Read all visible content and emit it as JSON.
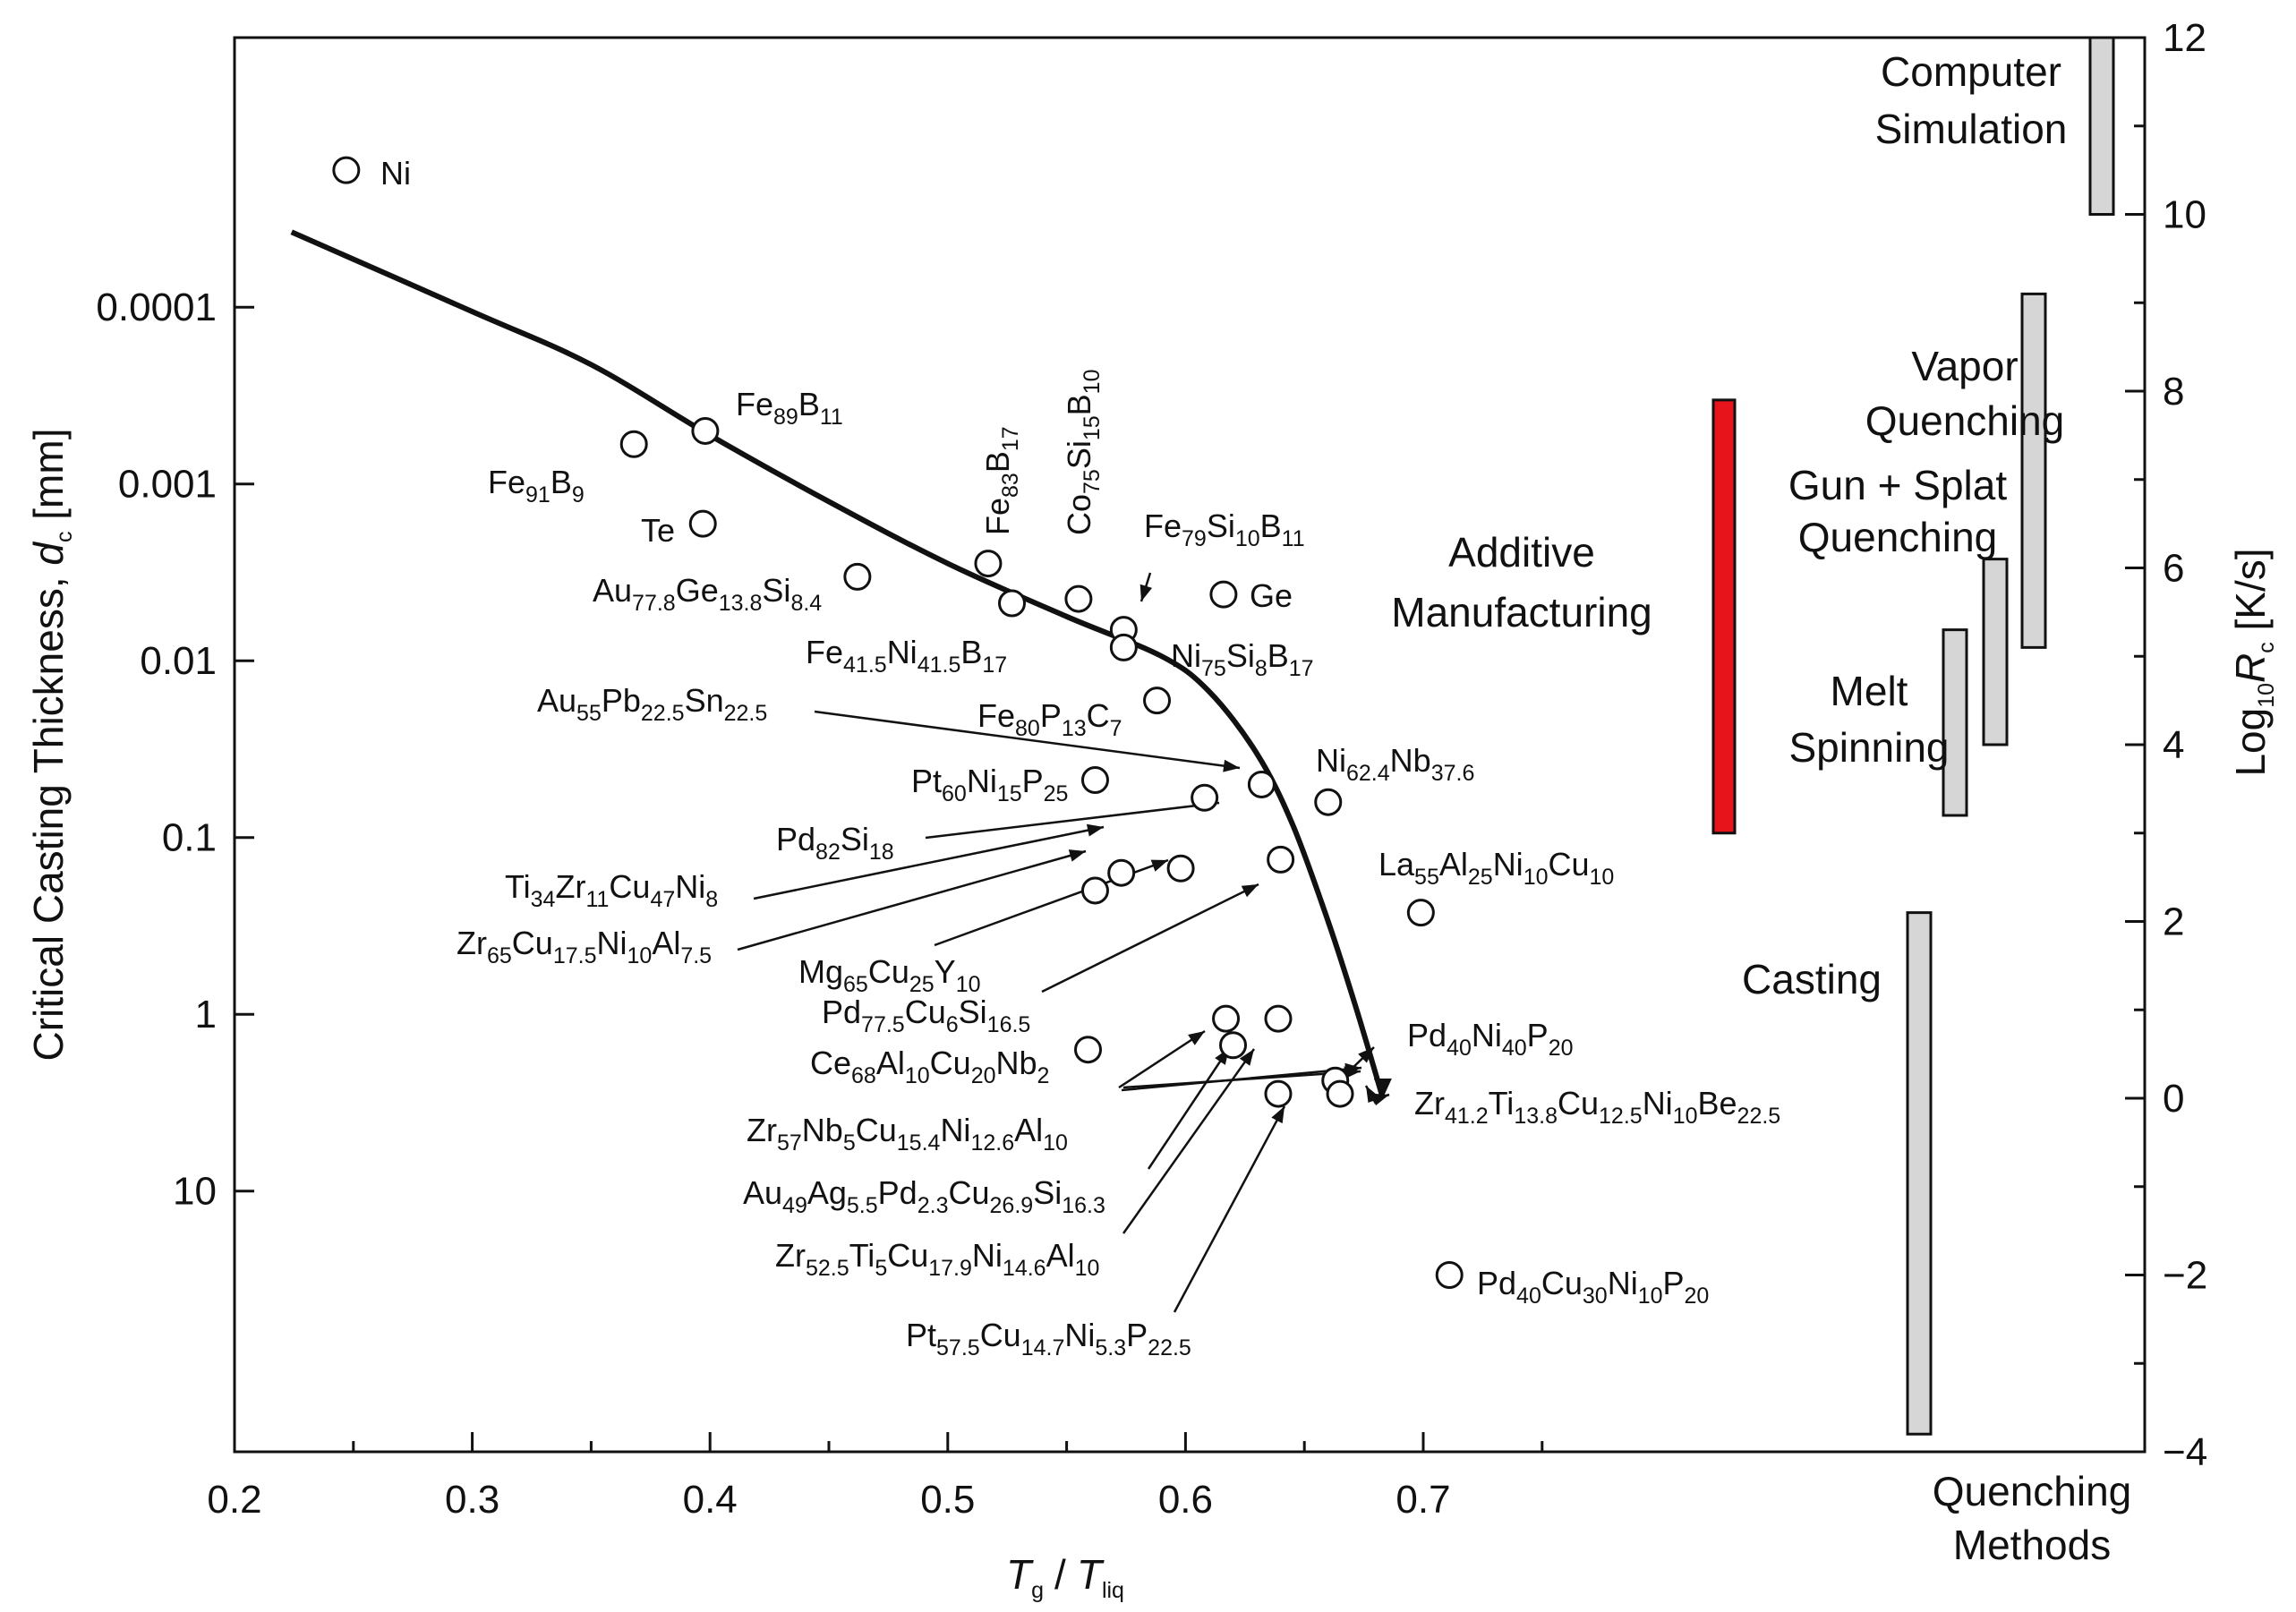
{
  "chart_data": {
    "type": "scatter",
    "xlabel": {
      "main": "T",
      "sub": "g",
      "slash": "/",
      "main2": "T",
      "sub2": "liq"
    },
    "ylabel": {
      "text": "Critical Casting Thickness, ",
      "var": "d",
      "sub": "c",
      "unit": " [mm]"
    },
    "y2label": {
      "prefix": "Log",
      "sub": "10",
      "var": "R",
      "sub2": "c",
      "unit": " [K/s]"
    },
    "xlim": [
      0.2,
      0.99
    ],
    "x_ticks": [
      "0.2",
      "0.3",
      "0.4",
      "0.5",
      "0.6",
      "0.7"
    ],
    "y_left_ticks": [
      "0.0001",
      "0.001",
      "0.01",
      "0.1",
      "1",
      "10"
    ],
    "y_right_ticks": [
      "12",
      "10",
      "8",
      "6",
      "4",
      "2",
      "0",
      "−2",
      "−4"
    ],
    "y_right_lim": [
      -4,
      12
    ],
    "points": [
      {
        "name": "Ni",
        "label": [
          {
            "t": "Ni"
          }
        ],
        "x": 0.247,
        "logR": 10.5
      },
      {
        "name": "Fe91B9",
        "label": [
          {
            "t": "Fe"
          },
          {
            "s": "91"
          },
          {
            "t": "B"
          },
          {
            "s": "9"
          }
        ],
        "x": 0.368,
        "logR": 7.4
      },
      {
        "name": "Fe89B11",
        "label": [
          {
            "t": "Fe"
          },
          {
            "s": "89"
          },
          {
            "t": "B"
          },
          {
            "s": "11"
          }
        ],
        "x": 0.398,
        "logR": 7.55
      },
      {
        "name": "Te",
        "label": [
          {
            "t": "Te"
          }
        ],
        "x": 0.397,
        "logR": 6.5
      },
      {
        "name": "Au77.8Ge13.8Si8.4",
        "label": [
          {
            "t": "Au"
          },
          {
            "s": "77.8"
          },
          {
            "t": "Ge"
          },
          {
            "s": "13.8"
          },
          {
            "t": "Si"
          },
          {
            "s": "8.4"
          }
        ],
        "x": 0.462,
        "logR": 5.9
      },
      {
        "name": "Fe83B17",
        "label": [
          {
            "t": "Fe"
          },
          {
            "s": "83"
          },
          {
            "t": "B"
          },
          {
            "s": "17"
          }
        ],
        "x": 0.517,
        "logR": 6.05
      },
      {
        "name": "Fe41.5Ni41.5B17",
        "label": [
          {
            "t": "Fe"
          },
          {
            "s": "41.5"
          },
          {
            "t": "Ni"
          },
          {
            "s": "41.5"
          },
          {
            "t": "B"
          },
          {
            "s": "17"
          }
        ],
        "x": 0.527,
        "logR": 5.6
      },
      {
        "name": "Co75Si15B10",
        "label": [
          {
            "t": "Co"
          },
          {
            "s": "75"
          },
          {
            "t": "Si"
          },
          {
            "s": "15"
          },
          {
            "t": "B"
          },
          {
            "s": "10"
          }
        ],
        "x": 0.555,
        "logR": 5.65
      },
      {
        "name": "Fe79Si10B11",
        "label": [
          {
            "t": "Fe"
          },
          {
            "s": "79"
          },
          {
            "t": "Si"
          },
          {
            "s": "10"
          },
          {
            "t": "B"
          },
          {
            "s": "11"
          }
        ],
        "x": 0.574,
        "logR": 5.3
      },
      {
        "name": "Ni75Si8B17",
        "label": [
          {
            "t": "Ni"
          },
          {
            "s": "75"
          },
          {
            "t": "Si"
          },
          {
            "s": "8"
          },
          {
            "t": "B"
          },
          {
            "s": "17"
          }
        ],
        "x": 0.574,
        "logR": 5.1
      },
      {
        "name": "Ge",
        "label": [
          {
            "t": "Ge"
          }
        ],
        "x": 0.616,
        "logR": 5.7
      },
      {
        "name": "Fe80P13C7",
        "label": [
          {
            "t": "Fe"
          },
          {
            "s": "80"
          },
          {
            "t": "P"
          },
          {
            "s": "13"
          },
          {
            "t": "C"
          },
          {
            "s": "7"
          }
        ],
        "x": 0.588,
        "logR": 4.5
      },
      {
        "name": "Au55Pb22.5Sn22.5",
        "label": [
          {
            "t": "Au"
          },
          {
            "s": "55"
          },
          {
            "t": "Pb"
          },
          {
            "s": "22.5"
          },
          {
            "t": "Sn"
          },
          {
            "s": "22.5"
          }
        ],
        "x": 0.632,
        "logR": 3.55
      },
      {
        "name": "Ni62.4Nb37.6",
        "label": [
          {
            "t": "Ni"
          },
          {
            "s": "62.4"
          },
          {
            "t": "Nb"
          },
          {
            "s": "37.6"
          }
        ],
        "x": 0.66,
        "logR": 3.35
      },
      {
        "name": "Pt60Ni15P25",
        "label": [
          {
            "t": "Pt"
          },
          {
            "s": "60"
          },
          {
            "t": "Ni"
          },
          {
            "s": "15"
          },
          {
            "t": "P"
          },
          {
            "s": "25"
          }
        ],
        "x": 0.562,
        "logR": 3.6
      },
      {
        "name": "Pd82Si18",
        "label": [
          {
            "t": "Pd"
          },
          {
            "s": "82"
          },
          {
            "t": "Si"
          },
          {
            "s": "18"
          }
        ],
        "x": 0.608,
        "logR": 3.4
      },
      {
        "name": "Ti34Zr11Cu47Ni8",
        "label": [
          {
            "t": "Ti"
          },
          {
            "s": "34"
          },
          {
            "t": "Zr"
          },
          {
            "s": "11"
          },
          {
            "t": "Cu"
          },
          {
            "s": "47"
          },
          {
            "t": "Ni"
          },
          {
            "s": "8"
          }
        ],
        "x": 0.573,
        "logR": 2.55
      },
      {
        "name": "Zr65Cu17.5Ni10Al7.5",
        "label": [
          {
            "t": "Zr"
          },
          {
            "s": "65"
          },
          {
            "t": "Cu"
          },
          {
            "s": "17.5"
          },
          {
            "t": "Ni"
          },
          {
            "s": "10"
          },
          {
            "t": "Al"
          },
          {
            "s": "7.5"
          }
        ],
        "x": 0.562,
        "logR": 2.35
      },
      {
        "name": "Mg65Cu25Y10",
        "label": [
          {
            "t": "Mg"
          },
          {
            "s": "65"
          },
          {
            "t": "Cu"
          },
          {
            "s": "25"
          },
          {
            "t": "Y"
          },
          {
            "s": "10"
          }
        ],
        "x": 0.598,
        "logR": 2.6
      },
      {
        "name": "Pd77.5Cu6Si16.5",
        "label": [
          {
            "t": "Pd"
          },
          {
            "s": "77.5"
          },
          {
            "t": "Cu"
          },
          {
            "s": "6"
          },
          {
            "t": "Si"
          },
          {
            "s": "16.5"
          }
        ],
        "x": 0.64,
        "logR": 2.7
      },
      {
        "name": "La55Al25Ni10Cu10",
        "label": [
          {
            "t": "La"
          },
          {
            "s": "55"
          },
          {
            "t": "Al"
          },
          {
            "s": "25"
          },
          {
            "t": "Ni"
          },
          {
            "s": "10"
          },
          {
            "t": "Cu"
          },
          {
            "s": "10"
          }
        ],
        "x": 0.699,
        "logR": 2.1
      },
      {
        "name": "Ce68Al10Cu20Nb2",
        "label": [
          {
            "t": "Ce"
          },
          {
            "s": "68"
          },
          {
            "t": "Al"
          },
          {
            "s": "10"
          },
          {
            "t": "Cu"
          },
          {
            "s": "20"
          },
          {
            "t": "Nb"
          },
          {
            "s": "2"
          }
        ],
        "x": 0.559,
        "logR": 0.55
      },
      {
        "name": "Zr57Nb5Cu15.4Ni12.6Al10",
        "label": [
          {
            "t": "Zr"
          },
          {
            "s": "57"
          },
          {
            "t": "Nb"
          },
          {
            "s": "5"
          },
          {
            "t": "Cu"
          },
          {
            "s": "15.4"
          },
          {
            "t": "Ni"
          },
          {
            "s": "12.6"
          },
          {
            "t": "Al"
          },
          {
            "s": "10"
          }
        ],
        "x": 0.617,
        "logR": 0.9
      },
      {
        "name": "Au49Ag5.5Pd2.3Cu26.9Si16.3",
        "label": [
          {
            "t": "Au"
          },
          {
            "s": "49"
          },
          {
            "t": "Ag"
          },
          {
            "s": "5.5"
          },
          {
            "t": "Pd"
          },
          {
            "s": "2.3"
          },
          {
            "t": "Cu"
          },
          {
            "s": "26.9"
          },
          {
            "t": "Si"
          },
          {
            "s": "16.3"
          }
        ],
        "x": 0.62,
        "logR": 0.6
      },
      {
        "name": "Zr52.5Ti5Cu17.9Ni14.6Al10",
        "label": [
          {
            "t": "Zr"
          },
          {
            "s": "52.5"
          },
          {
            "t": "Ti"
          },
          {
            "s": "5"
          },
          {
            "t": "Cu"
          },
          {
            "s": "17.9"
          },
          {
            "t": "Ni"
          },
          {
            "s": "14.6"
          },
          {
            "t": "Al"
          },
          {
            "s": "10"
          }
        ],
        "x": 0.639,
        "logR": 0.9
      },
      {
        "name": "Pt57.5Cu14.7Ni5.3P22.5",
        "label": [
          {
            "t": "Pt"
          },
          {
            "s": "57.5"
          },
          {
            "t": "Cu"
          },
          {
            "s": "14.7"
          },
          {
            "t": "Ni"
          },
          {
            "s": "5.3"
          },
          {
            "t": "P"
          },
          {
            "s": "22.5"
          }
        ],
        "x": 0.639,
        "logR": 0.05
      },
      {
        "name": "Pd40Ni40P20",
        "label": [
          {
            "t": "Pd"
          },
          {
            "s": "40"
          },
          {
            "t": "Ni"
          },
          {
            "s": "40"
          },
          {
            "t": "P"
          },
          {
            "s": "20"
          }
        ],
        "x": 0.663,
        "logR": 0.2
      },
      {
        "name": "Zr41.2Ti13.8Cu12.5Ni10Be22.5",
        "label": [
          {
            "t": "Zr"
          },
          {
            "s": "41.2"
          },
          {
            "t": "Ti"
          },
          {
            "s": "13.8"
          },
          {
            "t": "Cu"
          },
          {
            "s": "12.5"
          },
          {
            "t": "Ni"
          },
          {
            "s": "10"
          },
          {
            "t": "Be"
          },
          {
            "s": "22.5"
          }
        ],
        "x": 0.665,
        "logR": 0.05
      },
      {
        "name": "Pd40Cu30Ni10P20",
        "label": [
          {
            "t": "Pd"
          },
          {
            "s": "40"
          },
          {
            "t": "Cu"
          },
          {
            "s": "30"
          },
          {
            "t": "Ni"
          },
          {
            "s": "10"
          },
          {
            "t": "P"
          },
          {
            "s": "20"
          }
        ],
        "x": 0.711,
        "logR": -2.0
      }
    ],
    "trend_curve": [
      [
        0.224,
        9.8
      ],
      [
        0.3,
        8.9
      ],
      [
        0.35,
        8.3
      ],
      [
        0.4,
        7.5
      ],
      [
        0.45,
        6.75
      ],
      [
        0.5,
        6.05
      ],
      [
        0.55,
        5.45
      ],
      [
        0.59,
        5.0
      ],
      [
        0.61,
        4.6
      ],
      [
        0.63,
        3.9
      ],
      [
        0.645,
        3.1
      ],
      [
        0.66,
        2.0
      ],
      [
        0.672,
        1.0
      ],
      [
        0.683,
        0.0
      ]
    ],
    "quenching_methods": [
      {
        "name": "Computer Simulation",
        "lines": [
          "Computer",
          "Simulation"
        ],
        "range": [
          10.0,
          12.0
        ],
        "color": "#d6d6d6"
      },
      {
        "name": "Vapor Quenching",
        "lines": [
          "Vapor",
          "Quenching"
        ],
        "range": [
          5.1,
          9.1
        ],
        "color": "#d6d6d6"
      },
      {
        "name": "Gun + Splat Quenching",
        "lines": [
          "Gun + Splat",
          "Quenching"
        ],
        "range": [
          4.0,
          6.1
        ],
        "color": "#d6d6d6"
      },
      {
        "name": "Melt Spinning",
        "lines": [
          "Melt",
          "Spinning"
        ],
        "range": [
          3.2,
          5.3
        ],
        "color": "#d6d6d6"
      },
      {
        "name": "Additive Manufacturing",
        "lines": [
          "Additive",
          "Manufacturing"
        ],
        "range": [
          3.0,
          7.9
        ],
        "color": "#e8141c"
      },
      {
        "name": "Casting",
        "lines": [
          "Casting"
        ],
        "range": [
          -3.8,
          2.1
        ],
        "color": "#d6d6d6"
      }
    ],
    "methods_axis_label": [
      "Quenching",
      "Methods"
    ]
  }
}
